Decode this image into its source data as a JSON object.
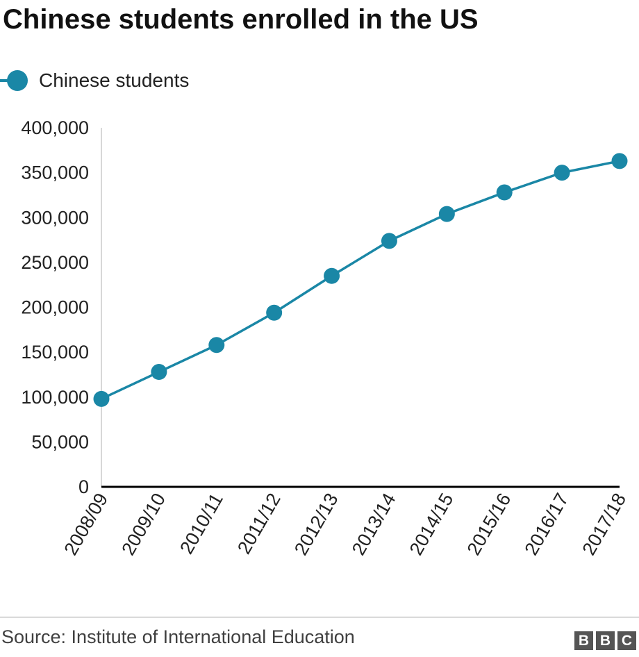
{
  "theme": {
    "series_color": "#1a87a6",
    "axis_color": "#000000",
    "text_color": "#222222"
  },
  "chart_data": {
    "type": "line",
    "title": "Chinese students enrolled in the US",
    "xlabel": "",
    "ylabel": "",
    "categories": [
      "2008/09",
      "2009/10",
      "2010/11",
      "2011/12",
      "2012/13",
      "2013/14",
      "2014/15",
      "2015/16",
      "2016/17",
      "2017/18"
    ],
    "series": [
      {
        "name": "Chinese students",
        "values": [
          98000,
          128000,
          158000,
          194000,
          235000,
          274000,
          304000,
          328000,
          350000,
          363000
        ]
      }
    ],
    "ylim": [
      0,
      400000
    ],
    "yticks": [
      "0",
      "50,000",
      "100,000",
      "150,000",
      "200,000",
      "250,000",
      "300,000",
      "350,000",
      "400,000"
    ],
    "grid": false,
    "legend": "top-left"
  },
  "footer": {
    "source": "Source: Institute of International Education",
    "logo": [
      "B",
      "B",
      "C"
    ]
  }
}
